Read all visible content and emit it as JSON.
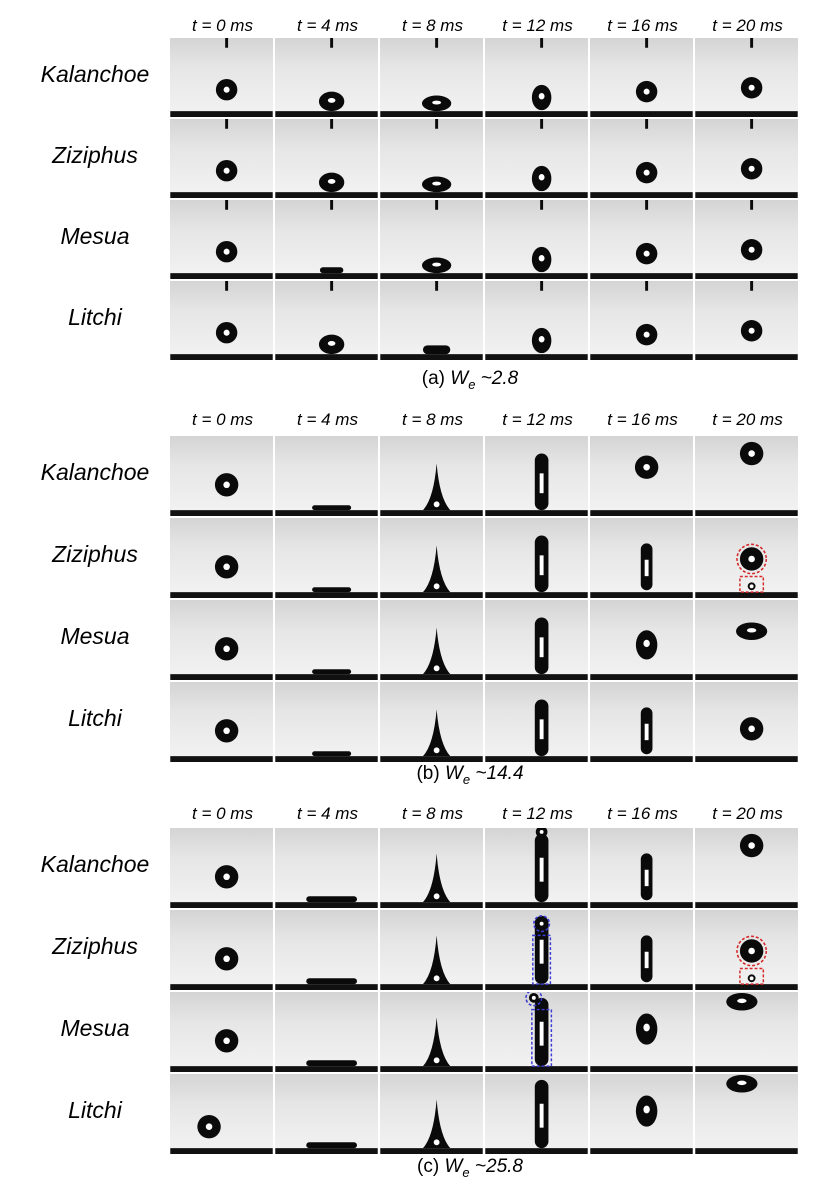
{
  "time_labels": [
    "t = 0 ms",
    "t = 4 ms",
    "t = 8 ms",
    "t = 12 ms",
    "t = 16 ms",
    "t = 20 ms"
  ],
  "row_labels": [
    "Kalanchoe",
    "Ziziphus",
    "Mesua",
    "Litchi"
  ],
  "panels": [
    {
      "caption_prefix": "(a) ",
      "caption_symbol": "W",
      "caption_subscript": "e",
      "caption_value": " ~2.8"
    },
    {
      "caption_prefix": "(b) ",
      "caption_symbol": "W",
      "caption_subscript": "e",
      "caption_value": " ~14.4"
    },
    {
      "caption_prefix": "(c) ",
      "caption_symbol": "W",
      "caption_subscript": "e",
      "caption_value": " ~25.8"
    }
  ],
  "colors": {
    "droplet": "#0a0a0a",
    "surface": "#111111",
    "red_highlight": "#d62828",
    "blue_highlight": "#3a3ad6"
  }
}
